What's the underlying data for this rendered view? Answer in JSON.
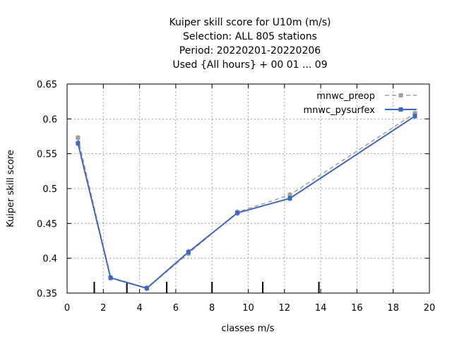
{
  "chart_data": {
    "type": "line",
    "title_lines": [
      "Kuiper skill score  for U10m (m/s)",
      "Selection: ALL    805 stations",
      "Period: 20220201-20220206",
      "Used {All hours} + 00 01 ... 09"
    ],
    "xlabel": "classes m/s",
    "ylabel": "Kuiper skill score",
    "xlim": [
      0,
      20
    ],
    "ylim": [
      0.35,
      0.65
    ],
    "xticks": [
      "0",
      "2",
      "4",
      "6",
      "8",
      "10",
      "12",
      "14",
      "16",
      "18",
      "20"
    ],
    "yticks": [
      "0.35",
      "0.4",
      "0.45",
      "0.5",
      "0.55",
      "0.6",
      "0.65"
    ],
    "grid": true,
    "legend_position": "top-right",
    "class_boundaries": [
      1.5,
      3.3,
      5.5,
      8.0,
      10.8,
      13.9
    ],
    "series": [
      {
        "name": "mnwc_preop",
        "color": "#a0a0a0",
        "dashed": true,
        "points": [
          {
            "x": 0.6,
            "y": 0.573
          },
          {
            "x": 2.4,
            "y": 0.372
          },
          {
            "x": 4.4,
            "y": 0.357
          },
          {
            "x": 6.7,
            "y": 0.407
          },
          {
            "x": 9.4,
            "y": 0.466
          },
          {
            "x": 12.3,
            "y": 0.491
          },
          {
            "x": 19.2,
            "y": 0.608
          }
        ]
      },
      {
        "name": "mnwc_pysurfex",
        "color": "#3a66c8",
        "dashed": false,
        "points": [
          {
            "x": 0.6,
            "y": 0.565
          },
          {
            "x": 2.4,
            "y": 0.372
          },
          {
            "x": 4.4,
            "y": 0.357
          },
          {
            "x": 6.7,
            "y": 0.409
          },
          {
            "x": 9.4,
            "y": 0.465
          },
          {
            "x": 12.3,
            "y": 0.486
          },
          {
            "x": 19.2,
            "y": 0.604
          }
        ]
      }
    ]
  }
}
